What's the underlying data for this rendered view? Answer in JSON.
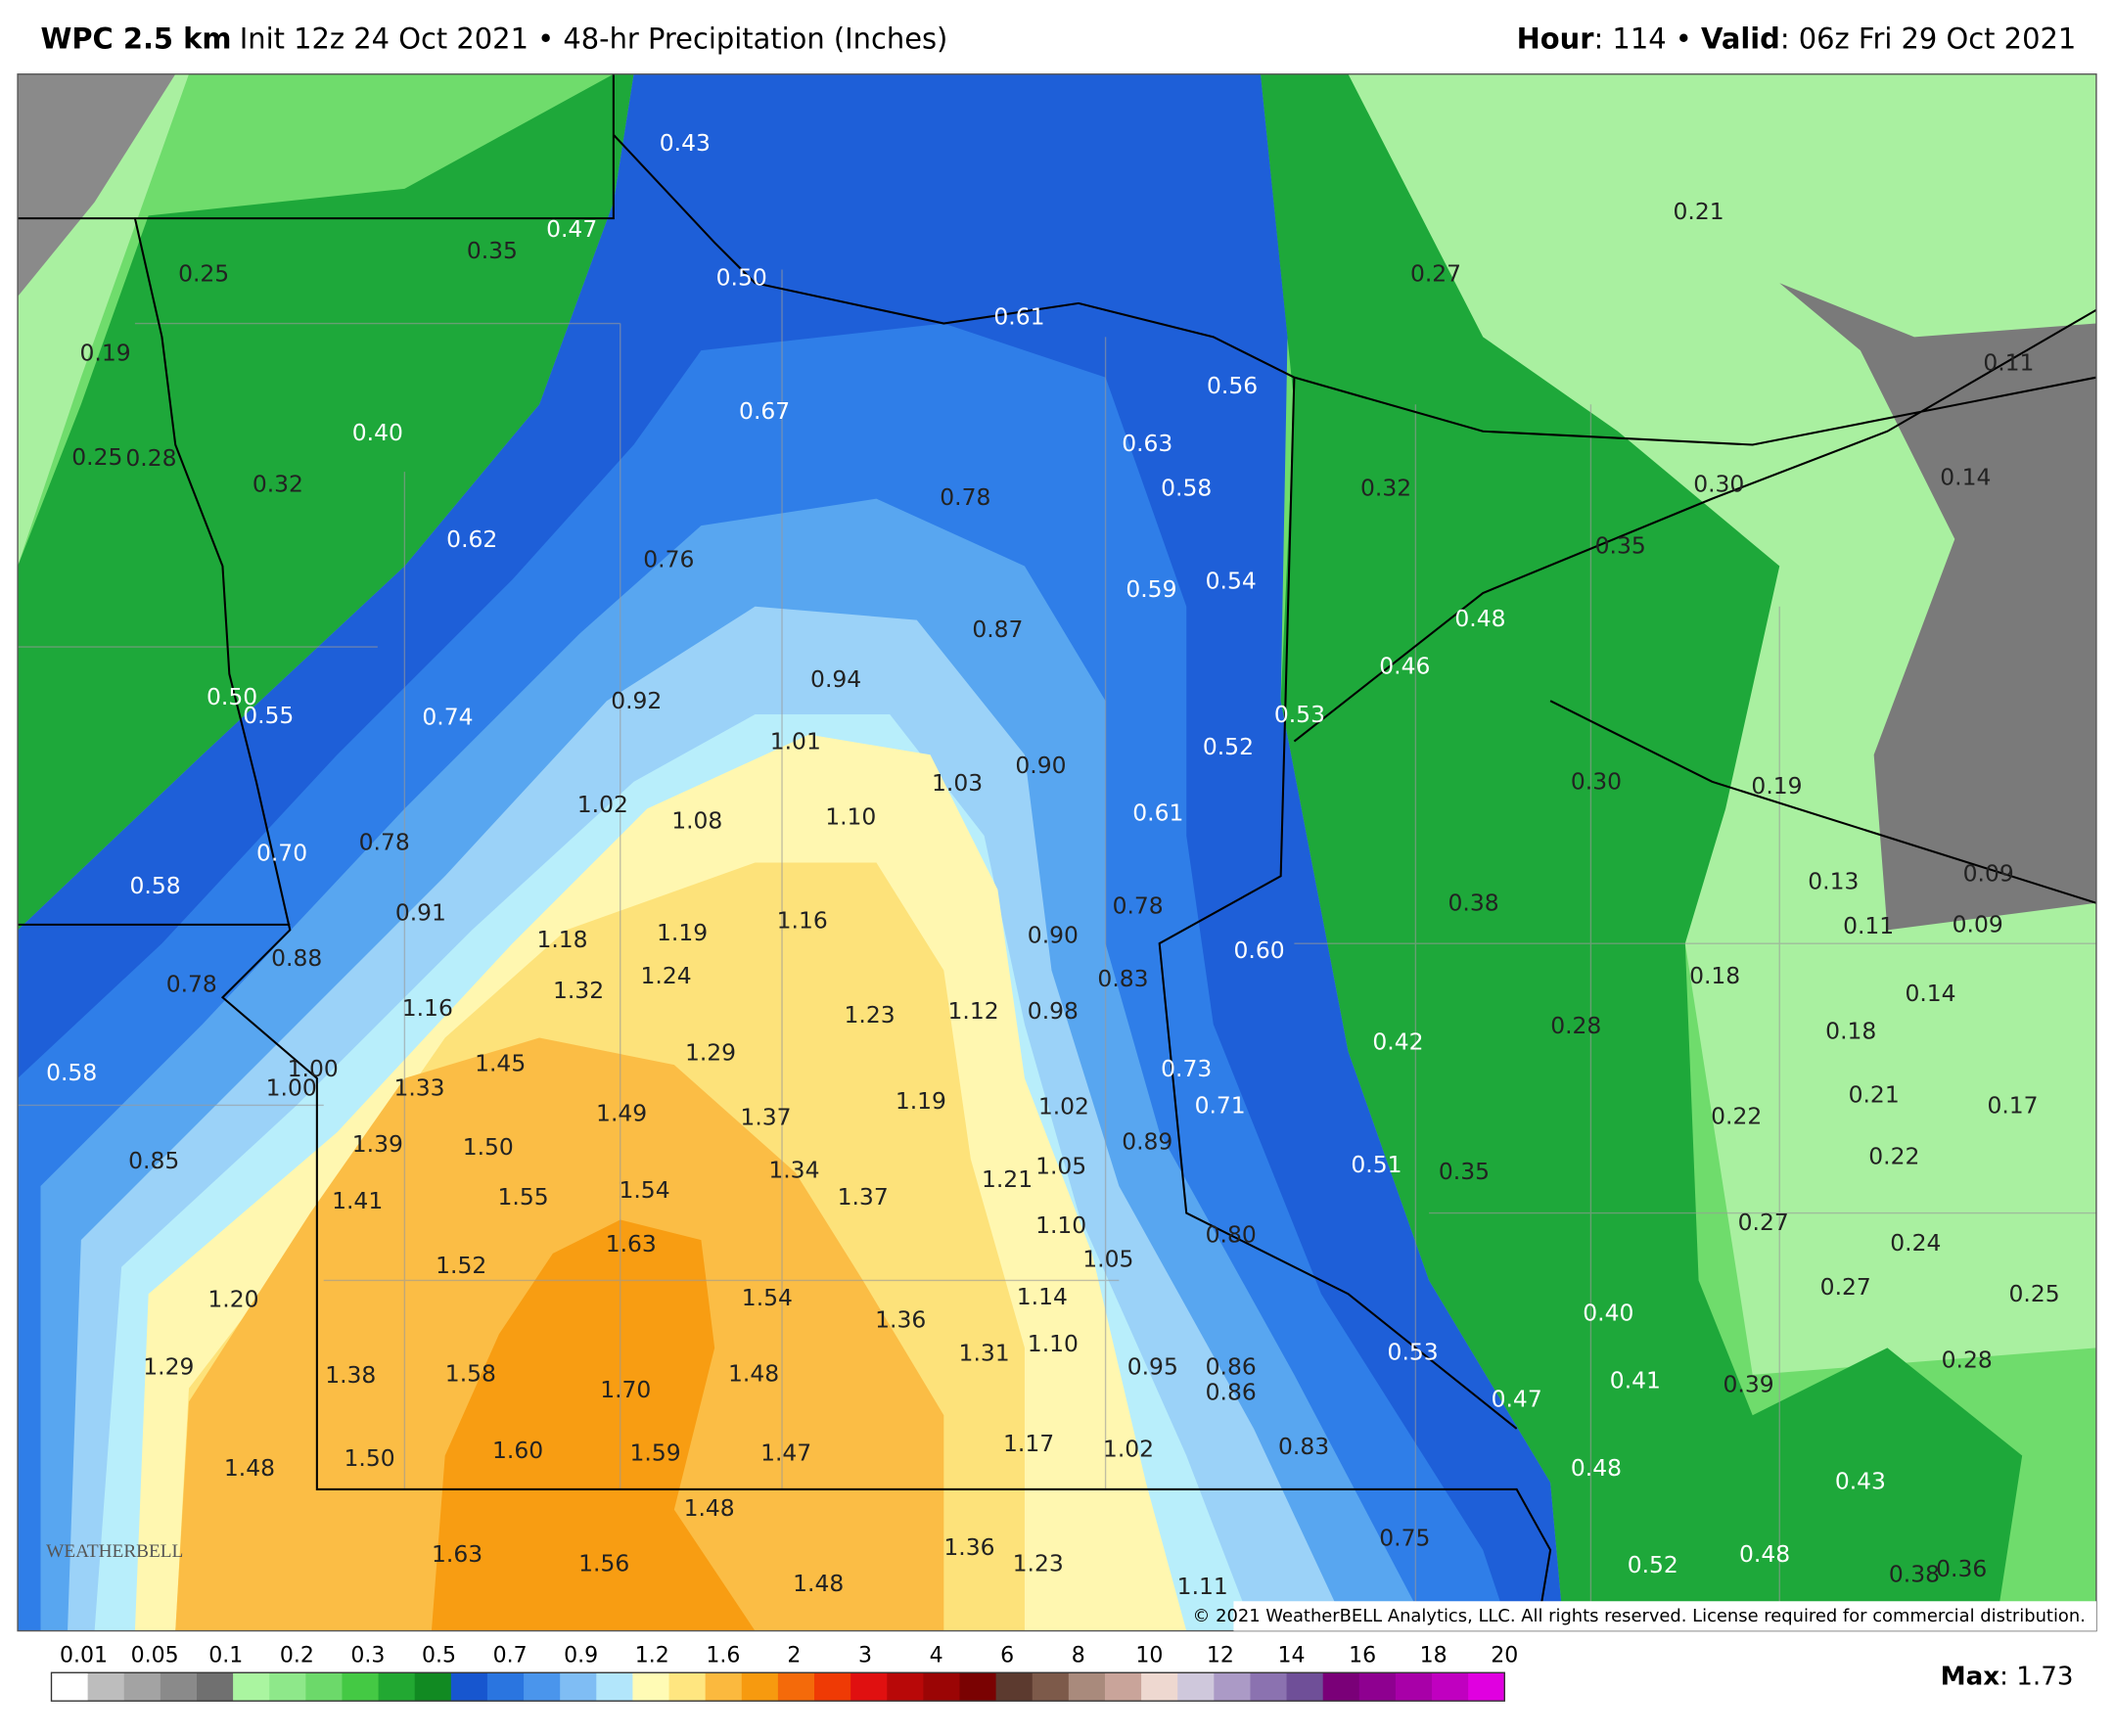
{
  "header": {
    "model": "WPC 2.5 km",
    "title": "Init 12z 24 Oct 2021 • 48-hr Precipitation (Inches)",
    "hour_label": "Hour",
    "hour": ": 114 • ",
    "valid_label": "Valid",
    "valid": ": 06z Fri 29 Oct 2021"
  },
  "map": {
    "labels": [
      "0.43",
      "0.47",
      "0.35",
      "0.25",
      "0.50",
      "0.61",
      "0.19",
      "0.56",
      "0.21",
      "0.27",
      "0.11",
      "0.67",
      "0.40",
      "0.63",
      "0.25",
      "0.28",
      "0.32",
      "0.58",
      "0.78",
      "0.32",
      "0.30",
      "0.14",
      "0.62",
      "0.35",
      "0.76",
      "0.59",
      "0.54",
      "0.48",
      "0.87",
      "0.46",
      "0.94",
      "0.50",
      "0.55",
      "0.74",
      "0.92",
      "0.53",
      "1.01",
      "0.52",
      "0.90",
      "1.03",
      "0.30",
      "0.19",
      "1.02",
      "1.08",
      "1.10",
      "0.61",
      "0.70",
      "0.78",
      "0.58",
      "0.13",
      "0.09",
      "0.78",
      "0.91",
      "0.38",
      "0.11",
      "0.09",
      "1.16",
      "1.18",
      "1.19",
      "0.90",
      "0.60",
      "0.88",
      "0.78",
      "1.24",
      "0.18",
      "1.32",
      "0.83",
      "1.16",
      "1.23",
      "1.12",
      "0.98",
      "0.14",
      "0.28",
      "0.18",
      "0.42",
      "1.29",
      "0.58",
      "1.00",
      "1.00",
      "1.45",
      "0.73",
      "1.33",
      "1.49",
      "1.37",
      "1.19",
      "1.02",
      "0.71",
      "0.21",
      "0.22",
      "0.17",
      "1.39",
      "1.50",
      "0.85",
      "0.89",
      "0.22",
      "1.34",
      "1.05",
      "0.51",
      "0.35",
      "1.21",
      "1.55",
      "1.54",
      "1.37",
      "1.41",
      "1.10",
      "0.80",
      "0.27",
      "0.24",
      "1.63",
      "1.05",
      "1.52",
      "1.20",
      "1.54",
      "1.14",
      "0.27",
      "0.25",
      "1.36",
      "0.40",
      "1.29",
      "1.10",
      "1.31",
      "0.95",
      "0.86",
      "0.53",
      "0.28",
      "1.38",
      "1.58",
      "1.48",
      "0.41",
      "0.39",
      "0.86",
      "1.70",
      "0.47",
      "1.48",
      "1.50",
      "1.60",
      "1.59",
      "1.47",
      "1.17",
      "1.02",
      "0.83",
      "0.48",
      "0.43",
      "1.48",
      "0.75",
      "1.36",
      "1.63",
      "1.56",
      "1.23",
      "0.52",
      "0.48",
      "0.38",
      "0.36",
      "1.48",
      "1.11"
    ],
    "watermark": "WEATHERBELL",
    "copyright": "© 2021 WeatherBELL Analytics, LLC. All rights reserved. License required for commercial distribution."
  },
  "colorbar": {
    "labels": [
      "0.01",
      "0.05",
      "0.1",
      "0.2",
      "0.3",
      "0.5",
      "0.7",
      "0.9",
      "1.2",
      "1.6",
      "2",
      "3",
      "4",
      "6",
      "8",
      "10",
      "12",
      "14",
      "16",
      "18",
      "20"
    ],
    "colors": [
      "#ffffff",
      "#bdbdbd",
      "#a3a3a3",
      "#8a8a8a",
      "#707070",
      "#aaf5a0",
      "#8ee88a",
      "#6cd96a",
      "#44c944",
      "#22a832",
      "#118a22",
      "#1756cf",
      "#2a75e0",
      "#4a95ec",
      "#7fbdf4",
      "#b2e6fb",
      "#fffbb5",
      "#ffe680",
      "#fbb93e",
      "#f79a0f",
      "#f46a0a",
      "#ef3a05",
      "#e01010",
      "#b80808",
      "#9b0505",
      "#7a0202",
      "#5c3a2f",
      "#7d5a4a",
      "#a98a7c",
      "#c9a49a",
      "#eed8d0",
      "#cfc8dc",
      "#ab9ac6",
      "#8b72b0",
      "#6f4f98",
      "#7a0078",
      "#8e0090",
      "#a800a8",
      "#c000c0",
      "#e000e0"
    ],
    "max_label": "Max",
    "max": ": 1.73"
  }
}
